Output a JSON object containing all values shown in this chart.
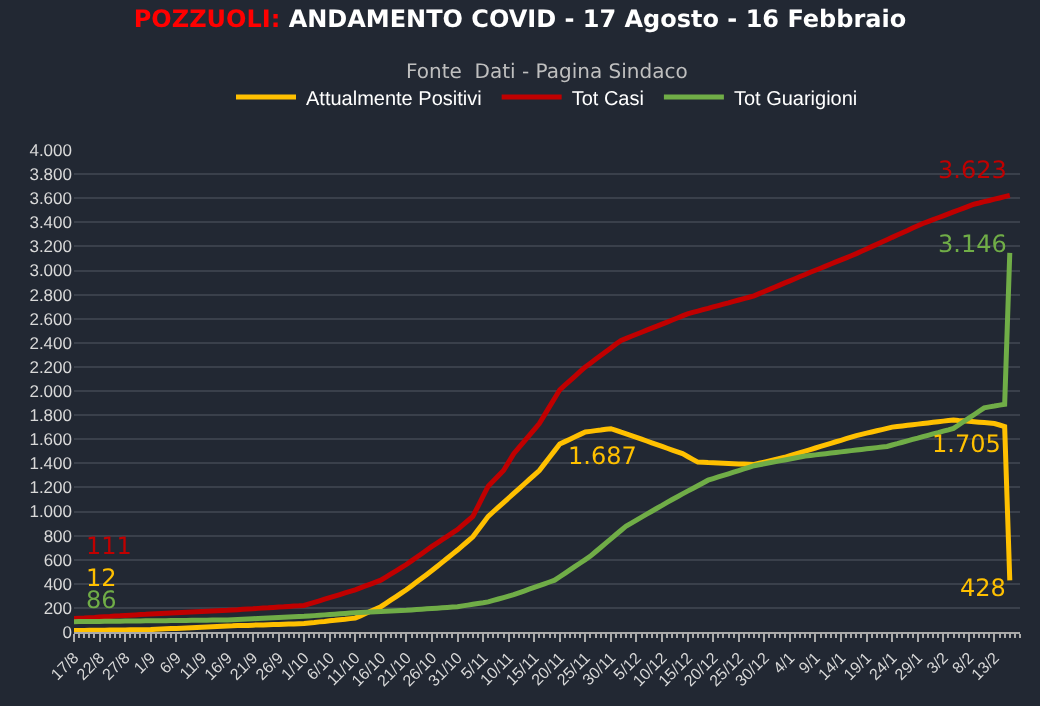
{
  "chart_data": {
    "type": "line",
    "title": "POZZUOLI: ANDAMENTO COVID - 17 Agosto - 16 Febbraio",
    "subtitle": "Fonte  Dati - Pagina Sindaco",
    "categories": [
      "17/8",
      null,
      null,
      null,
      null,
      "22/8",
      null,
      null,
      null,
      null,
      "27/8",
      null,
      null,
      null,
      null,
      "1/9",
      null,
      null,
      null,
      null,
      "6/9",
      null,
      null,
      null,
      null,
      "11/9",
      null,
      null,
      null,
      null,
      "16/9",
      null,
      null,
      null,
      null,
      "21/9",
      null,
      null,
      null,
      null,
      "26/9",
      null,
      null,
      null,
      null,
      "1/10",
      null,
      null,
      null,
      null,
      "6/10",
      null,
      null,
      null,
      null,
      "11/10",
      null,
      null,
      null,
      null,
      "16/10",
      null,
      null,
      null,
      null,
      "21/10",
      null,
      null,
      null,
      null,
      "26/10",
      null,
      null,
      null,
      null,
      "31/10",
      null,
      null,
      null,
      null,
      "5/11",
      null,
      null,
      null,
      null,
      "10/11",
      null,
      null,
      null,
      null,
      "15/11",
      null,
      null,
      null,
      null,
      "20/11",
      null,
      null,
      null,
      null,
      "25/11",
      null,
      null,
      null,
      null,
      "30/11",
      null,
      null,
      null,
      null,
      "5/12",
      null,
      null,
      null,
      null,
      "10/12",
      null,
      null,
      null,
      null,
      "15/12",
      null,
      null,
      null,
      null,
      "20/12",
      null,
      null,
      null,
      null,
      "25/12",
      null,
      null,
      null,
      null,
      "30/12",
      null,
      null,
      null,
      null,
      "4/1",
      null,
      null,
      null,
      null,
      "9/1",
      null,
      null,
      null,
      null,
      "14/1",
      null,
      null,
      null,
      null,
      "19/1",
      null,
      null,
      null,
      null,
      "24/1",
      null,
      null,
      null,
      null,
      "29/1",
      null,
      null,
      null,
      null,
      "3/2",
      null,
      null,
      null,
      null,
      "8/2",
      null,
      null,
      null,
      null,
      "13/2",
      null,
      null,
      null
    ],
    "series": [
      {
        "name": "Attualmente Positivi",
        "color": "#ffc000",
        "values": [
          12,
          13,
          13,
          14,
          14,
          15,
          15,
          16,
          16,
          17,
          17,
          18,
          18,
          19,
          19,
          20,
          22,
          24,
          26,
          28,
          30,
          32,
          34,
          36,
          38,
          40,
          42,
          44,
          46,
          48,
          50,
          51,
          53,
          54,
          55,
          57,
          58,
          59,
          61,
          62,
          63,
          65,
          66,
          67,
          69,
          70,
          75,
          79,
          84,
          88,
          93,
          97,
          102,
          106,
          111,
          115,
          134,
          153,
          172,
          191,
          210,
          238,
          266,
          294,
          322,
          350,
          382,
          414,
          446,
          478,
          510,
          544,
          578,
          612,
          646,
          680,
          717,
          753,
          790,
          847,
          903,
          960,
          998,
          1036,
          1074,
          1112,
          1150,
          1188,
          1226,
          1264,
          1302,
          1340,
          1395,
          1450,
          1505,
          1560,
          1580,
          1600,
          1620,
          1640,
          1660,
          1665,
          1671,
          1676,
          1682,
          1687,
          1673,
          1658,
          1644,
          1629,
          1615,
          1600,
          1585,
          1570,
          1555,
          1540,
          1525,
          1510,
          1495,
          1480,
          1457,
          1433,
          1410,
          1408,
          1406,
          1405,
          1403,
          1401,
          1399,
          1397,
          1395,
          1394,
          1392,
          1390,
          1400,
          1410,
          1420,
          1430,
          1440,
          1450,
          1463,
          1476,
          1489,
          1501,
          1514,
          1527,
          1540,
          1553,
          1566,
          1579,
          1591,
          1604,
          1617,
          1630,
          1640,
          1650,
          1660,
          1670,
          1680,
          1690,
          1700,
          1705,
          1710,
          1715,
          1720,
          1725,
          1730,
          1735,
          1740,
          1745,
          1750,
          1755,
          1760,
          1756,
          1753,
          1749,
          1745,
          1741,
          1738,
          1734,
          1730,
          1718,
          1705,
          428
        ]
      },
      {
        "name": "Tot Casi",
        "color": "#c00000",
        "values": [
          111,
          114,
          116,
          119,
          121,
          124,
          127,
          129,
          132,
          134,
          137,
          140,
          142,
          145,
          147,
          150,
          152,
          154,
          156,
          158,
          160,
          162,
          164,
          166,
          168,
          170,
          172,
          174,
          176,
          178,
          180,
          183,
          185,
          188,
          191,
          193,
          196,
          199,
          201,
          204,
          207,
          209,
          212,
          215,
          217,
          220,
          233,
          246,
          259,
          272,
          285,
          298,
          311,
          324,
          337,
          350,
          366,
          382,
          398,
          414,
          430,
          456,
          482,
          508,
          534,
          560,
          590,
          620,
          650,
          680,
          710,
          738,
          766,
          794,
          822,
          850,
          887,
          923,
          960,
          1043,
          1127,
          1210,
          1253,
          1297,
          1340,
          1410,
          1480,
          1530,
          1580,
          1630,
          1680,
          1730,
          1800,
          1870,
          1940,
          2010,
          2048,
          2086,
          2124,
          2162,
          2200,
          2231,
          2263,
          2294,
          2326,
          2357,
          2389,
          2420,
          2437,
          2454,
          2471,
          2488,
          2505,
          2522,
          2538,
          2555,
          2572,
          2589,
          2606,
          2623,
          2640,
          2652,
          2663,
          2675,
          2686,
          2698,
          2709,
          2721,
          2732,
          2744,
          2755,
          2767,
          2778,
          2790,
          2808,
          2826,
          2843,
          2861,
          2879,
          2897,
          2914,
          2932,
          2950,
          2967,
          2985,
          3002,
          3019,
          3036,
          3054,
          3071,
          3088,
          3105,
          3123,
          3140,
          3159,
          3178,
          3198,
          3217,
          3236,
          3255,
          3275,
          3294,
          3313,
          3332,
          3352,
          3371,
          3390,
          3406,
          3422,
          3438,
          3454,
          3470,
          3486,
          3502,
          3518,
          3534,
          3550,
          3560,
          3571,
          3581,
          3592,
          3602,
          3613,
          3623
        ]
      },
      {
        "name": "Tot Guarigioni",
        "color": "#70ad47",
        "values": [
          86,
          87,
          87,
          87,
          88,
          88,
          89,
          89,
          90,
          90,
          91,
          91,
          92,
          92,
          93,
          93,
          93,
          94,
          94,
          95,
          95,
          96,
          96,
          97,
          97,
          98,
          98,
          99,
          99,
          100,
          100,
          102,
          104,
          106,
          108,
          110,
          112,
          114,
          116,
          118,
          120,
          122,
          124,
          126,
          128,
          130,
          133,
          136,
          139,
          142,
          145,
          148,
          151,
          154,
          157,
          160,
          162,
          164,
          166,
          168,
          170,
          172,
          174,
          176,
          178,
          180,
          183,
          186,
          189,
          192,
          195,
          198,
          201,
          204,
          207,
          210,
          217,
          223,
          230,
          237,
          243,
          250,
          262,
          274,
          286,
          298,
          310,
          325,
          340,
          355,
          370,
          385,
          400,
          415,
          430,
          459,
          487,
          516,
          544,
          573,
          601,
          630,
          666,
          701,
          737,
          773,
          809,
          844,
          880,
          904,
          929,
          953,
          978,
          1002,
          1027,
          1051,
          1076,
          1100,
          1123,
          1146,
          1169,
          1191,
          1214,
          1237,
          1260,
          1273,
          1287,
          1300,
          1313,
          1327,
          1340,
          1353,
          1367,
          1380,
          1388,
          1396,
          1404,
          1412,
          1420,
          1428,
          1436,
          1444,
          1452,
          1460,
          1465,
          1470,
          1475,
          1480,
          1485,
          1490,
          1495,
          1500,
          1505,
          1510,
          1515,
          1520,
          1525,
          1530,
          1535,
          1540,
          1552,
          1563,
          1575,
          1586,
          1598,
          1609,
          1621,
          1632,
          1644,
          1655,
          1667,
          1678,
          1690,
          1718,
          1747,
          1775,
          1803,
          1832,
          1860,
          1868,
          1875,
          1883,
          1890,
          3146
        ]
      }
    ],
    "annotations": [
      {
        "text": "111",
        "x": "17/8",
        "y": 111
      },
      {
        "text": "12",
        "x": "17/8",
        "y": 12
      },
      {
        "text": "86",
        "x": "17/8",
        "y": 86
      },
      {
        "text": "1.687",
        "x": "30/11",
        "y": 1687
      },
      {
        "text": "1.705",
        "y": 1705
      },
      {
        "text": "3.623",
        "y": 3623
      },
      "3.146",
      "428"
    ],
    "ylim": [
      0,
      4000
    ],
    "yticks": [
      {
        "value": 0,
        "label": "0"
      },
      {
        "value": 200,
        "label": "200"
      },
      {
        "value": 400,
        "label": "400"
      },
      {
        "value": 600,
        "label": "600"
      },
      {
        "value": 800,
        "label": "800"
      },
      {
        "value": 1000,
        "label": "1.000"
      },
      {
        "value": 1200,
        "label": "1.200"
      },
      {
        "value": 1400,
        "label": "1.400"
      },
      {
        "value": 1600,
        "label": "1.600"
      },
      {
        "value": 1800,
        "label": "1.800"
      },
      {
        "value": 2000,
        "label": "2.000"
      },
      {
        "value": 2200,
        "label": "2.200"
      },
      {
        "value": 2400,
        "label": "2.400"
      },
      {
        "value": 2600,
        "label": "2.600"
      },
      {
        "value": 2800,
        "label": "2.800"
      },
      {
        "value": 3000,
        "label": "3.000"
      },
      {
        "value": 3200,
        "label": "3.200"
      },
      {
        "value": 3400,
        "label": "3.400"
      },
      {
        "value": 3600,
        "label": "3.600"
      },
      {
        "value": 3800,
        "label": "3.800"
      },
      {
        "value": 4000,
        "label": "4.000"
      }
    ],
    "grid": "y",
    "legend": "top",
    "marker": "none",
    "line_style": "solid"
  }
}
